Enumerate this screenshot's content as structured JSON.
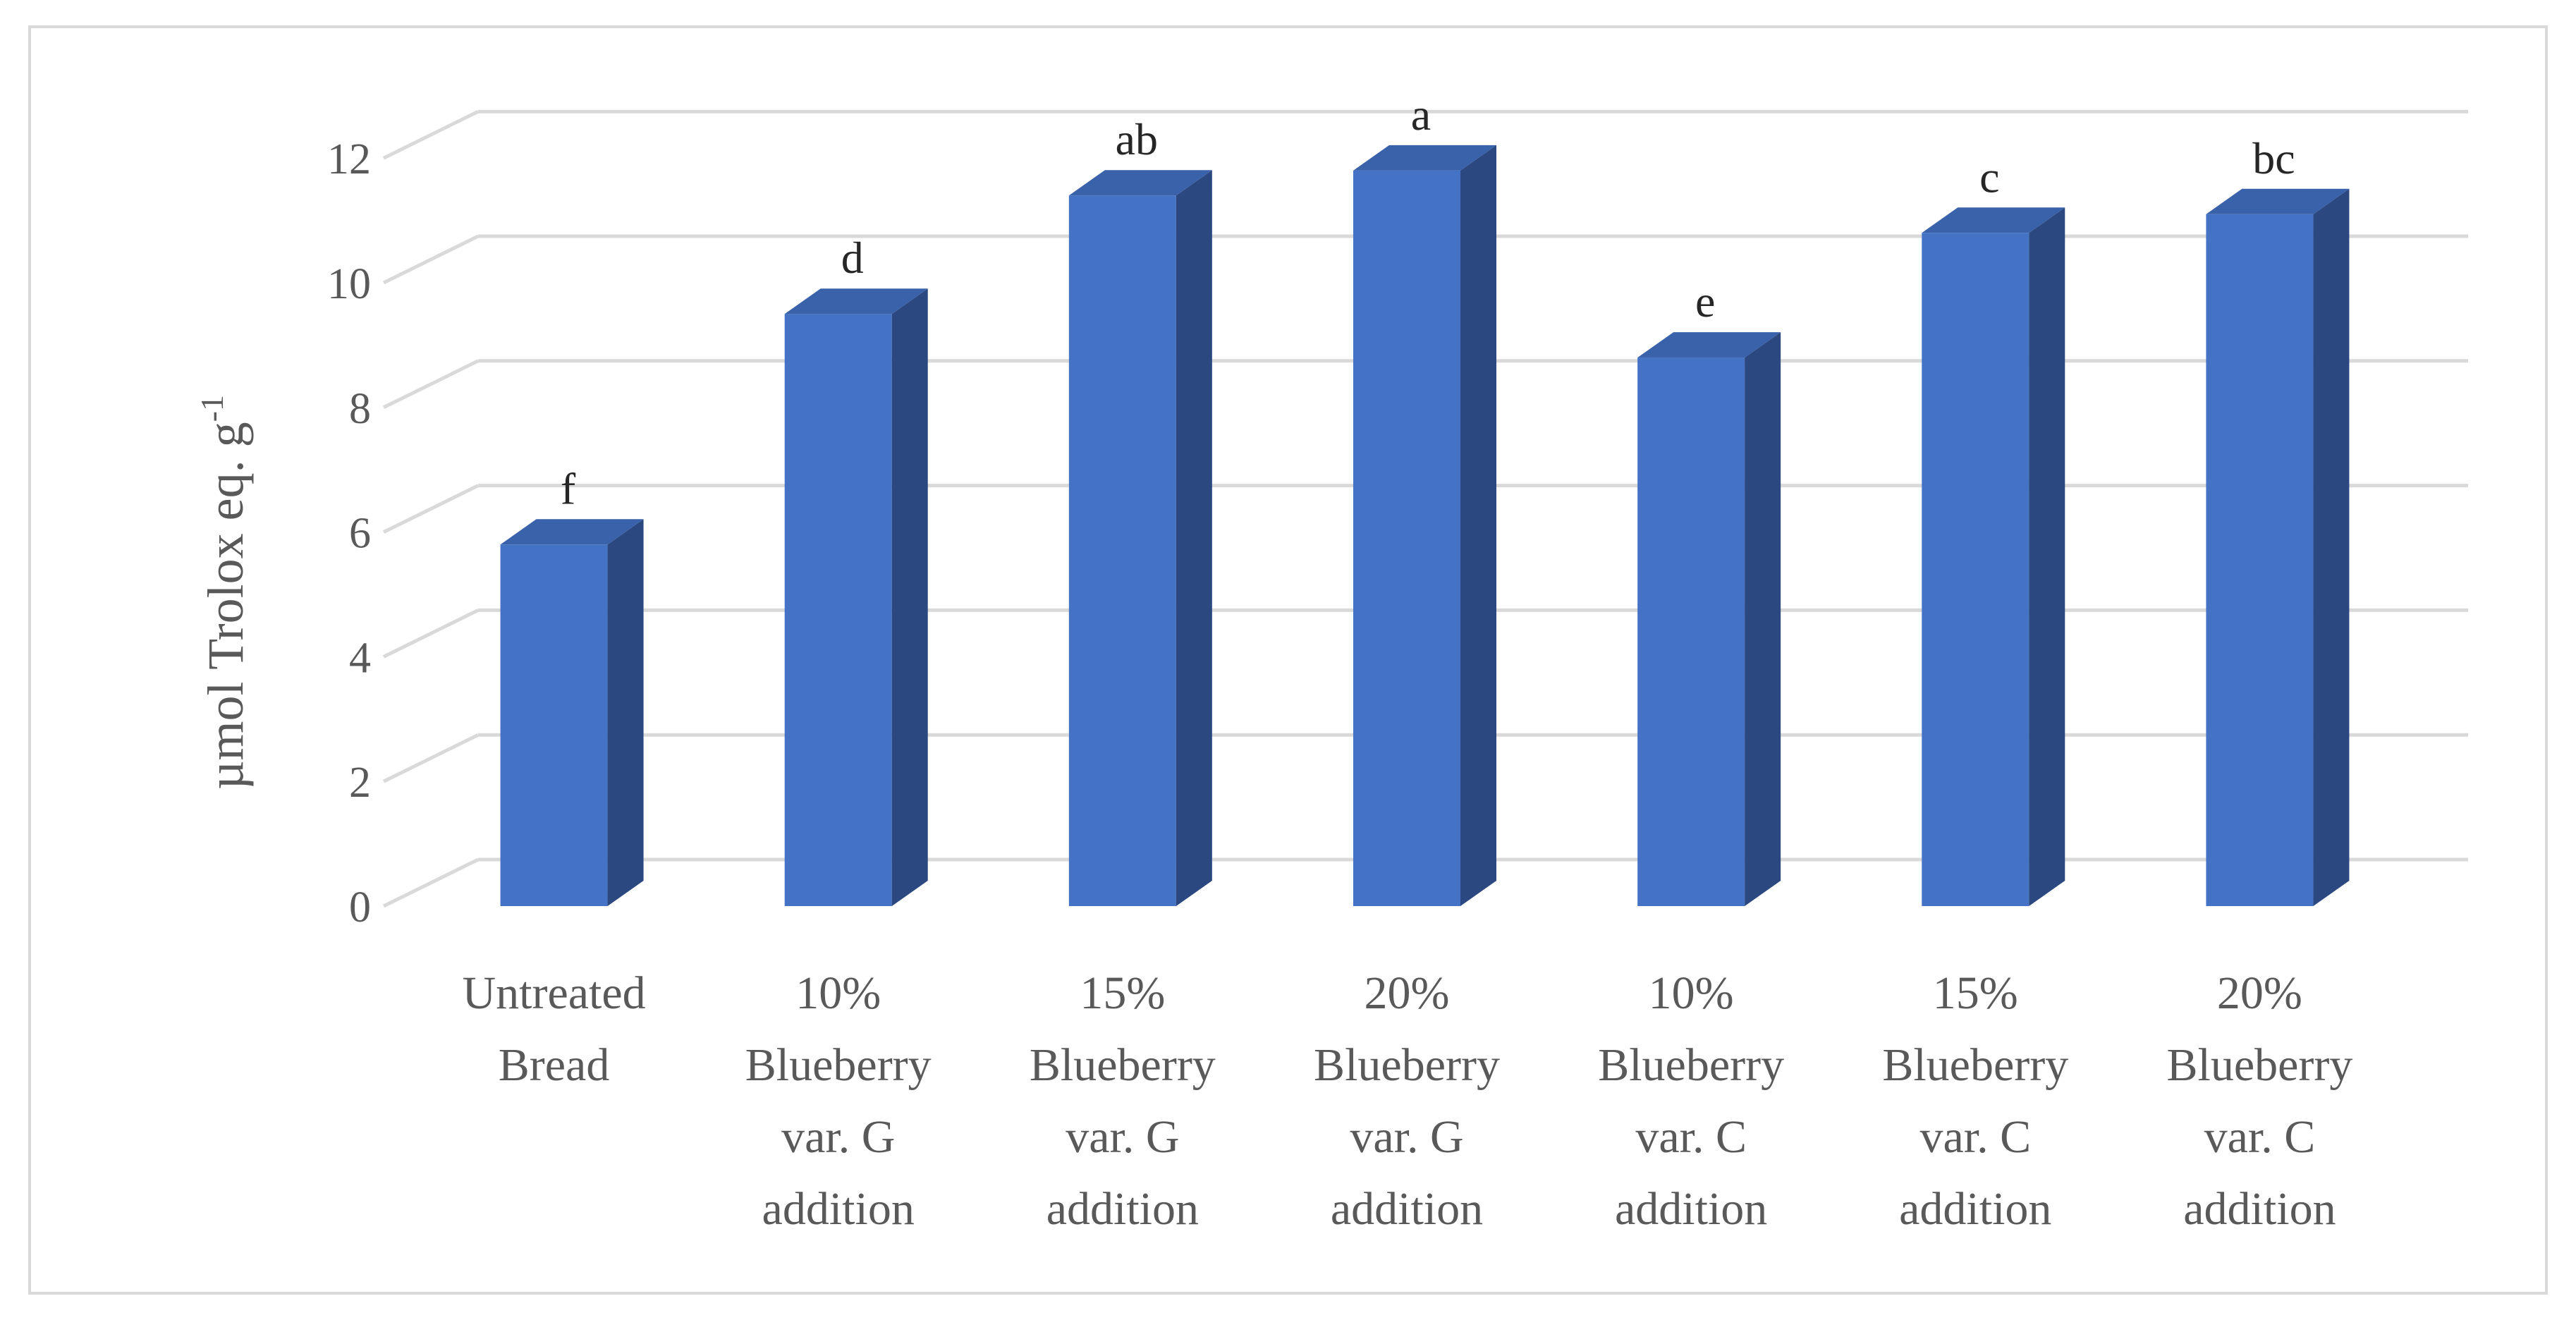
{
  "chart_data": {
    "type": "bar",
    "style": "3d-column",
    "ylabel": "µmol Trolox eq. g",
    "ylabel_superscript": "-1",
    "ylim": [
      0,
      12
    ],
    "yticks": [
      0,
      2,
      4,
      6,
      8,
      10,
      12
    ],
    "grid": true,
    "legend": "none",
    "categories": [
      [
        "Untreated",
        "Bread"
      ],
      [
        "10%",
        "Blueberry",
        "var. G",
        "addition"
      ],
      [
        "15%",
        "Blueberry",
        "var. G",
        "addition"
      ],
      [
        "20%",
        "Blueberry",
        "var. G",
        "addition"
      ],
      [
        "10%",
        "Blueberry",
        "var. C",
        "addition"
      ],
      [
        "15%",
        "Blueberry",
        "var. C",
        "addition"
      ],
      [
        "20%",
        "Blueberry",
        "var. C",
        "addition"
      ]
    ],
    "values": [
      5.8,
      9.5,
      11.4,
      11.8,
      8.8,
      10.8,
      11.1
    ],
    "data_labels": [
      "f",
      "d",
      "ab",
      "a",
      "e",
      "c",
      "bc"
    ],
    "colors": {
      "front": "#4472c4",
      "side": "#2b4880",
      "top": "#3a62aa",
      "grid": "#d9d9d9",
      "text": "#595959"
    }
  }
}
